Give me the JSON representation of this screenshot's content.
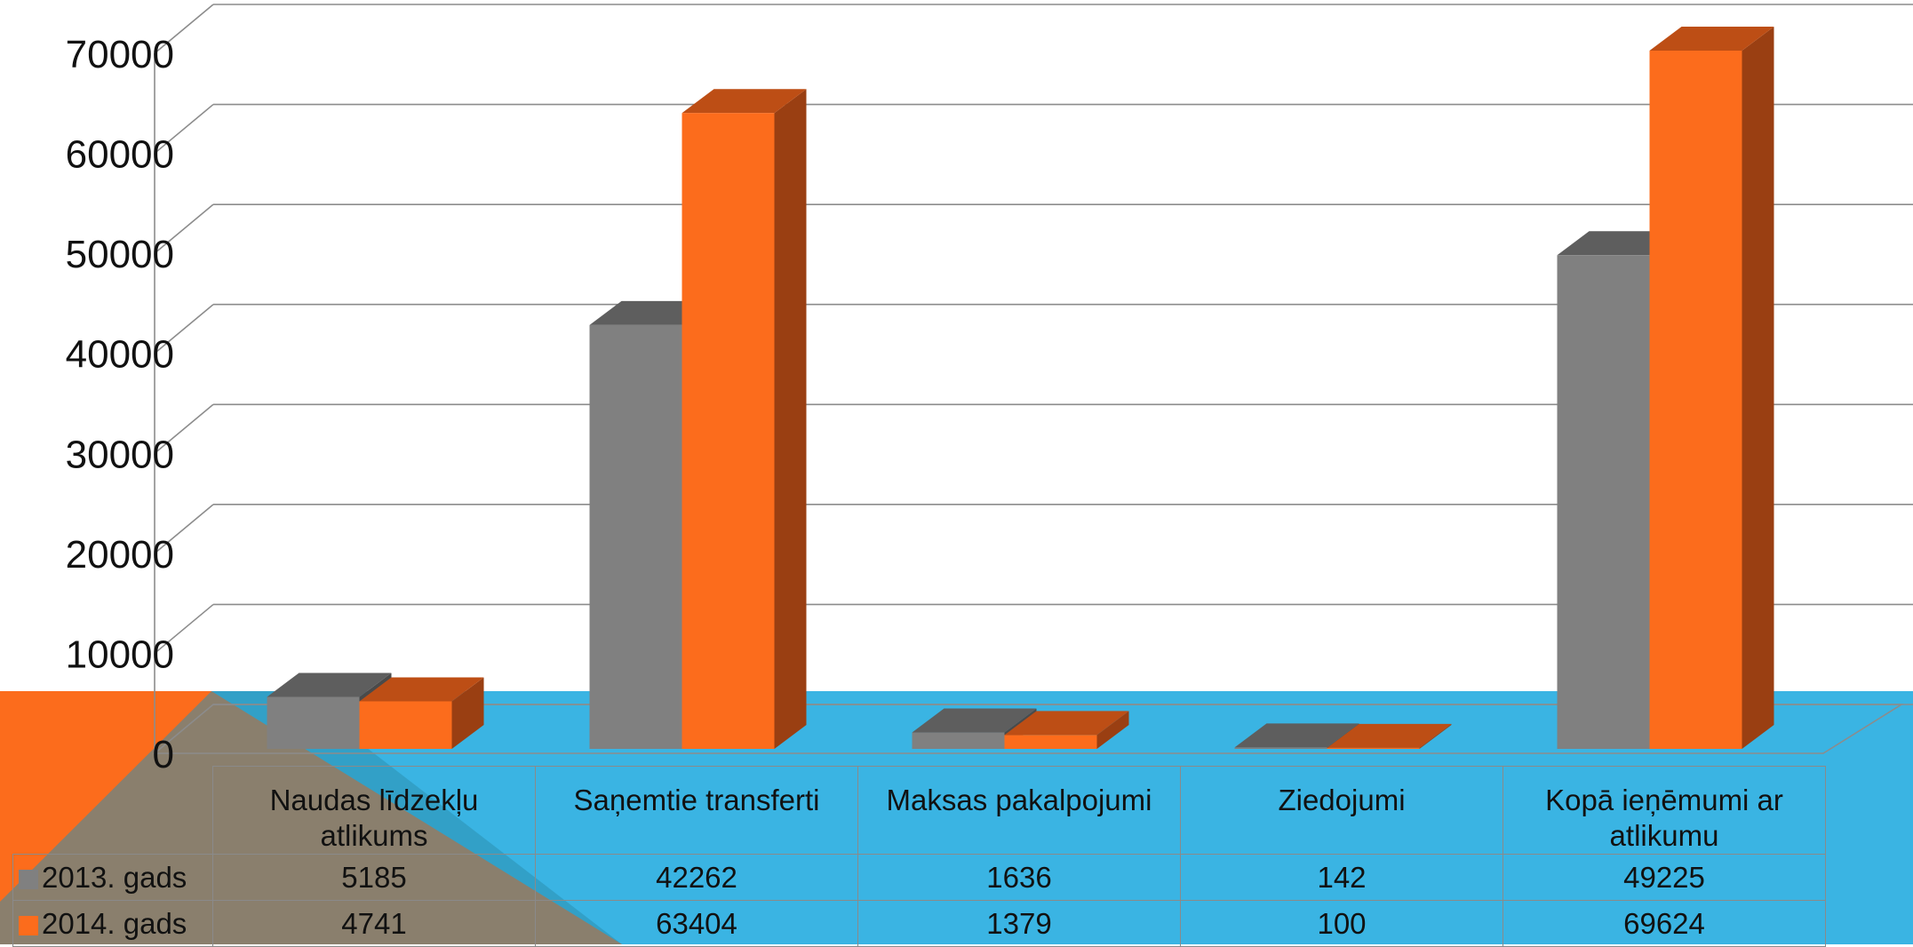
{
  "colors": {
    "series_2013": "#808080",
    "series_2014": "#fc6c1c",
    "background_band": "#3ab4e3",
    "orange_accent": "#fc6c1c"
  },
  "chart_data": {
    "type": "bar",
    "variant": "3d-clustered-column-with-data-table",
    "title": "",
    "xlabel": "",
    "ylabel": "",
    "ylim": [
      0,
      70000
    ],
    "yticks": [
      "0",
      "10000",
      "20000",
      "30000",
      "40000",
      "50000",
      "60000",
      "70000"
    ],
    "grid": true,
    "categories": [
      "Naudas līdzekļu atlikums",
      "Saņemtie transferti",
      "Maksas pakalpojumi",
      "Ziedojumi",
      "Kopā ieņēmumi ar atlikumu"
    ],
    "series": [
      {
        "name": "2013. gads",
        "values": [
          5185,
          42262,
          1636,
          142,
          49225
        ],
        "labels": [
          "5185",
          "42262",
          "1636",
          "142",
          "49225"
        ]
      },
      {
        "name": "2014. gads",
        "values": [
          4741,
          63404,
          1379,
          100,
          69624
        ],
        "labels": [
          "4741",
          "63404",
          "1379",
          "100",
          "69624"
        ]
      }
    ],
    "legend": "data-table"
  }
}
